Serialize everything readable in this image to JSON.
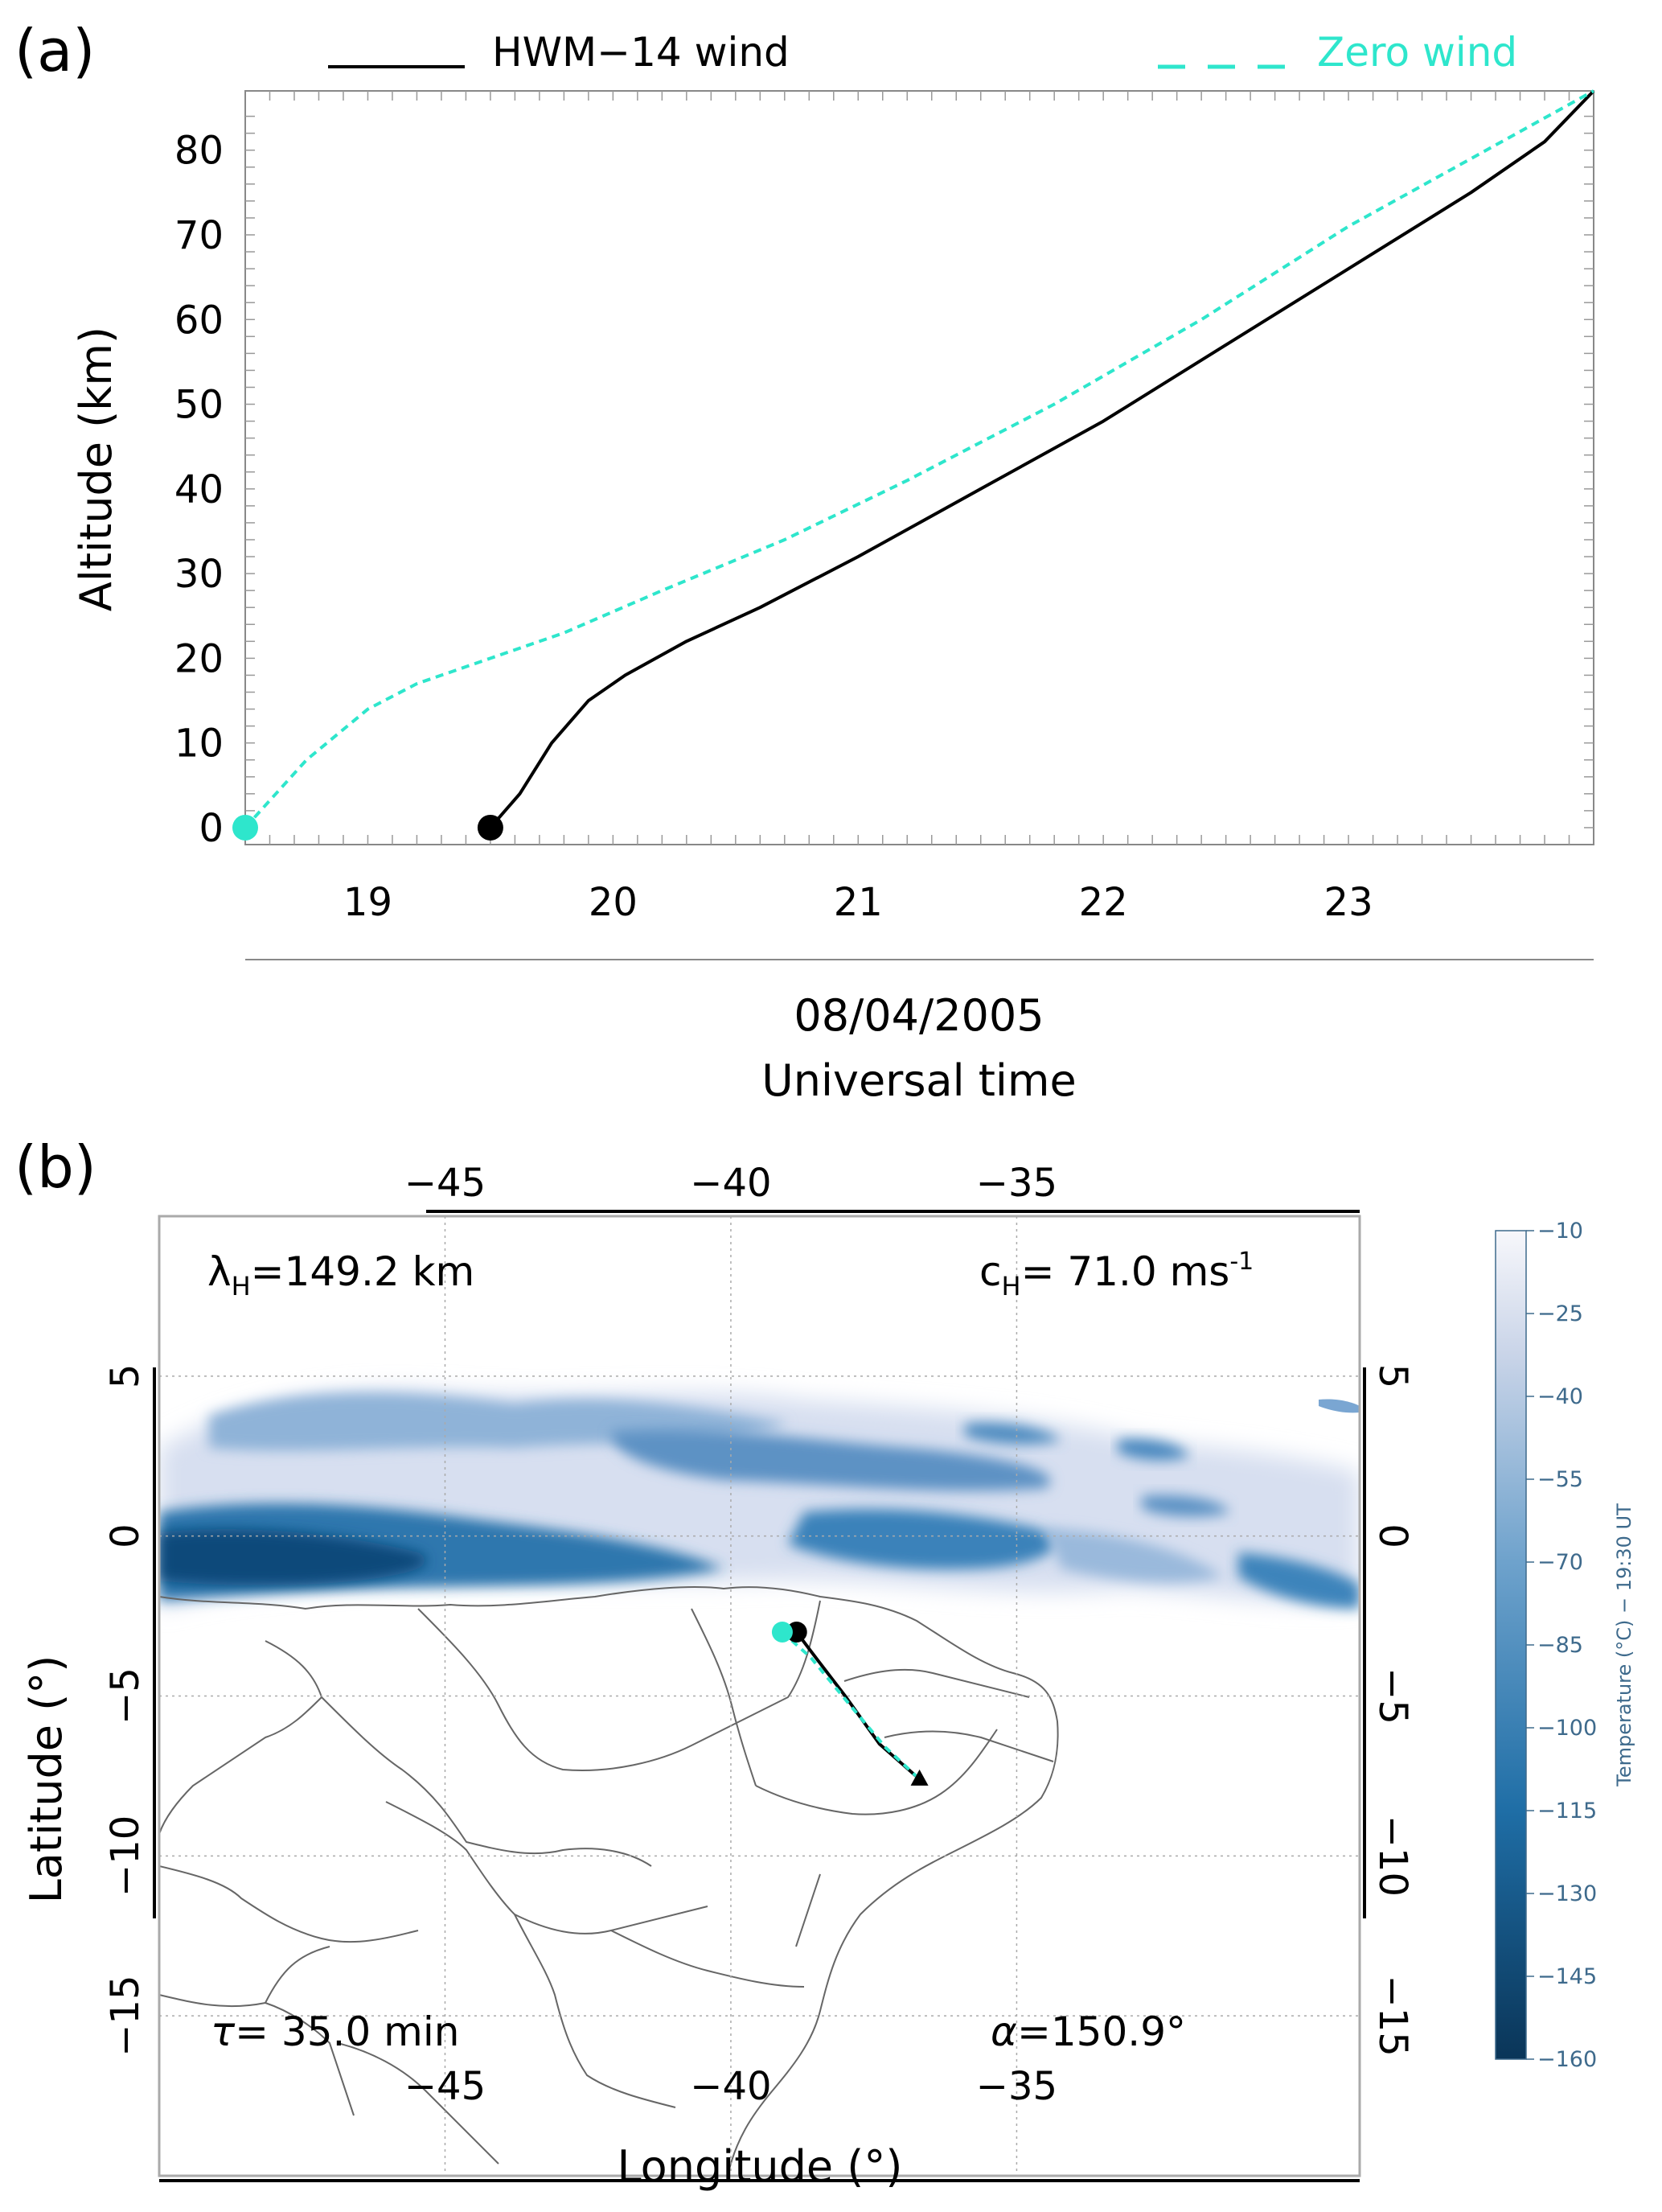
{
  "panel_a": {
    "label": "(a)",
    "legend": {
      "hwm_label": "HWM−14 wind",
      "zero_label": "Zero wind"
    },
    "ylabel": "Altitude (km)",
    "xlabel_date": "08/04/2005",
    "xlabel": "Universal time"
  },
  "panel_b": {
    "label": "(b)",
    "annotations": {
      "lambda_h": "λH=149.2 km",
      "c_h": "cH= 71.0 ms-1",
      "tau": "τ= 35.0 min",
      "alpha": "α=150.9°"
    },
    "xlabel": "Longitude (°)",
    "ylabel": "Latitude (°)",
    "colorbar_label": "Temperature (°C) − 19:30 UT"
  },
  "colors": {
    "hwm": "#000000",
    "zero": "#2ee6cc",
    "cloud_dark": "#0a4a78",
    "cloud_light": "#eef1f8",
    "coast": "#555555"
  },
  "chart_data": [
    {
      "type": "line",
      "xlabel": "Universal time",
      "ylabel": "Altitude (km)",
      "xlim": [
        18.5,
        24.0
      ],
      "ylim": [
        -2,
        87
      ],
      "x_ticks": [
        19,
        20,
        21,
        22,
        23
      ],
      "y_ticks": [
        0,
        10,
        20,
        30,
        40,
        50,
        60,
        70,
        80
      ],
      "series": [
        {
          "name": "HWM−14 wind",
          "color": "#000000",
          "style": "solid",
          "x": [
            19.5,
            19.62,
            19.75,
            19.9,
            20.05,
            20.3,
            20.6,
            21.0,
            21.5,
            22.0,
            22.5,
            23.0,
            23.5,
            23.8,
            24.0
          ],
          "y": [
            0,
            4,
            10,
            15,
            18,
            22,
            26,
            32,
            40,
            48,
            57,
            66,
            75,
            81,
            87
          ]
        },
        {
          "name": "Zero wind",
          "color": "#2ee6cc",
          "style": "dashed",
          "x": [
            18.5,
            18.75,
            19.0,
            19.2,
            19.5,
            19.8,
            20.2,
            20.7,
            21.2,
            21.8,
            22.4,
            23.0,
            23.5,
            24.0
          ],
          "y": [
            0,
            8,
            14,
            17,
            20,
            23,
            28,
            34,
            41,
            50,
            60,
            71,
            79,
            87
          ]
        }
      ]
    },
    {
      "type": "heatmap",
      "xlabel": "Longitude (°)",
      "ylabel": "Latitude (°)",
      "xlim": [
        -50,
        -29
      ],
      "ylim": [
        -20,
        10
      ],
      "x_ticks": [
        -45,
        -40,
        -35
      ],
      "y_ticks": [
        5,
        0,
        -5,
        -10,
        -15
      ],
      "colorbar": {
        "label": "Temperature (°C) − 19:30 UT",
        "ticks": [
          -10,
          -25,
          -40,
          -55,
          -70,
          -85,
          -100,
          -115,
          -130,
          -145,
          -160
        ],
        "range": [
          -160,
          -10
        ]
      },
      "series": [
        {
          "name": "HWM−14 wind",
          "lon": [
            -38.85,
            -38.6,
            -38.0,
            -37.4,
            -36.7
          ],
          "lat": [
            -3.0,
            -3.6,
            -5.0,
            -6.5,
            -7.6
          ]
        },
        {
          "name": "Zero wind",
          "lon": [
            -39.1,
            -38.6,
            -38.0,
            -37.3,
            -36.7
          ],
          "lat": [
            -3.0,
            -3.8,
            -5.1,
            -6.6,
            -7.6
          ]
        }
      ],
      "annotations": {
        "wavelength_km": 149.2,
        "phase_speed_ms": 71.0,
        "period_min": 35.0,
        "azimuth_deg": 150.9
      }
    }
  ]
}
